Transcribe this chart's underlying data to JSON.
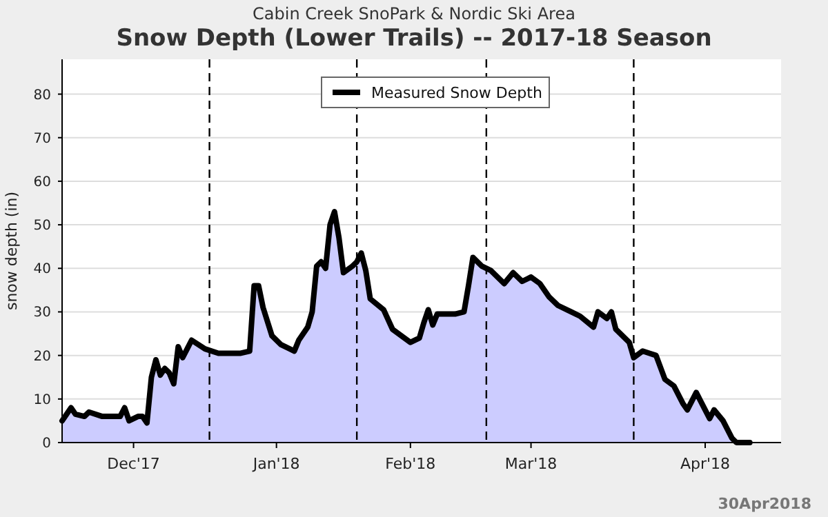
{
  "chart_data": {
    "type": "area",
    "title": "Snow Depth (Lower Trails) -- 2017-18 Season",
    "subtitle": "Cabin Creek SnoPark & Nordic Ski Area",
    "ylabel": "snow depth (in)",
    "annotations": [
      "30Apr2018"
    ],
    "x": [
      "2017-11-20",
      "2017-11-22",
      "2017-11-23",
      "2017-11-25",
      "2017-11-26",
      "2017-11-29",
      "2017-12-03",
      "2017-12-04",
      "2017-12-05",
      "2017-12-07",
      "2017-12-08",
      "2017-12-09",
      "2017-12-10",
      "2017-12-11",
      "2017-12-12",
      "2017-12-13",
      "2017-12-14",
      "2017-12-15",
      "2017-12-16",
      "2017-12-17",
      "2017-12-19",
      "2017-12-22",
      "2017-12-25",
      "2017-12-30",
      "2018-01-01",
      "2018-01-02",
      "2018-01-03",
      "2018-01-04",
      "2018-01-06",
      "2018-01-08",
      "2018-01-11",
      "2018-01-12",
      "2018-01-14",
      "2018-01-15",
      "2018-01-16",
      "2018-01-17",
      "2018-01-18",
      "2018-01-19",
      "2018-01-20",
      "2018-01-21",
      "2018-01-22",
      "2018-01-24",
      "2018-01-25",
      "2018-01-26",
      "2018-01-27",
      "2018-01-28",
      "2018-01-31",
      "2018-02-02",
      "2018-02-04",
      "2018-02-06",
      "2018-02-08",
      "2018-02-09",
      "2018-02-10",
      "2018-02-11",
      "2018-02-12",
      "2018-02-16",
      "2018-02-18",
      "2018-02-19",
      "2018-02-20",
      "2018-02-22",
      "2018-02-24",
      "2018-02-27",
      "2018-03-01",
      "2018-03-03",
      "2018-03-05",
      "2018-03-07",
      "2018-03-09",
      "2018-03-11",
      "2018-03-14",
      "2018-03-16",
      "2018-03-19",
      "2018-03-20",
      "2018-03-22",
      "2018-03-23",
      "2018-03-24",
      "2018-03-27",
      "2018-03-28",
      "2018-03-30",
      "2018-04-02",
      "2018-04-04",
      "2018-04-06",
      "2018-04-08",
      "2018-04-09",
      "2018-04-11",
      "2018-04-13",
      "2018-04-14",
      "2018-04-15",
      "2018-04-17",
      "2018-04-19",
      "2018-04-20",
      "2018-04-23"
    ],
    "series": [
      {
        "name": "Measured Snow Depth",
        "color": "#000000",
        "values": [
          5,
          8,
          6.5,
          6,
          7,
          6,
          6,
          8,
          5,
          6,
          6,
          4.5,
          15,
          19,
          15.5,
          17,
          16,
          13.5,
          22,
          19.5,
          23.5,
          21.5,
          20.5,
          20.5,
          21,
          36,
          36,
          31,
          24.5,
          22.5,
          21,
          23.5,
          26.5,
          30,
          40.5,
          41.5,
          40,
          50,
          53,
          47,
          39,
          40.5,
          41.5,
          43.5,
          39.5,
          33,
          30.5,
          26,
          24.5,
          23,
          24,
          27.5,
          30.5,
          27,
          29.5,
          29.5,
          30,
          36,
          42.5,
          40.5,
          39.5,
          36.5,
          39,
          37,
          38,
          36.5,
          33.5,
          31.5,
          30,
          29,
          26.5,
          30,
          28.5,
          30,
          26,
          23,
          19.5,
          21,
          20,
          14.5,
          13,
          9,
          7.5,
          11.5,
          7.5,
          5.5,
          7.5,
          5,
          1,
          0,
          0
        ]
      }
    ],
    "xlim": [
      "2017-11-20",
      "2018-04-30"
    ],
    "xticks": [
      {
        "value": "2017-12-06",
        "label": "Dec'17"
      },
      {
        "value": "2018-01-07",
        "label": "Jan'18"
      },
      {
        "value": "2018-02-06",
        "label": "Feb'18"
      },
      {
        "value": "2018-03-05",
        "label": "Mar'18"
      },
      {
        "value": "2018-04-13",
        "label": "Apr'18"
      }
    ],
    "ylim": [
      0,
      88
    ],
    "yticks": [
      0,
      10,
      20,
      30,
      40,
      50,
      60,
      70,
      80
    ],
    "ref_lines": [
      {
        "axis": "x",
        "value": "2017-12-23",
        "label": null,
        "line_style": "dashed"
      },
      {
        "axis": "x",
        "value": "2018-01-25",
        "label": null,
        "line_style": "dashed"
      },
      {
        "axis": "x",
        "value": "2018-02-23",
        "label": null,
        "line_style": "dashed"
      },
      {
        "axis": "x",
        "value": "2018-03-28",
        "label": null,
        "line_style": "dashed"
      }
    ],
    "grid": "y",
    "legend": "top",
    "line_style": "solid"
  }
}
